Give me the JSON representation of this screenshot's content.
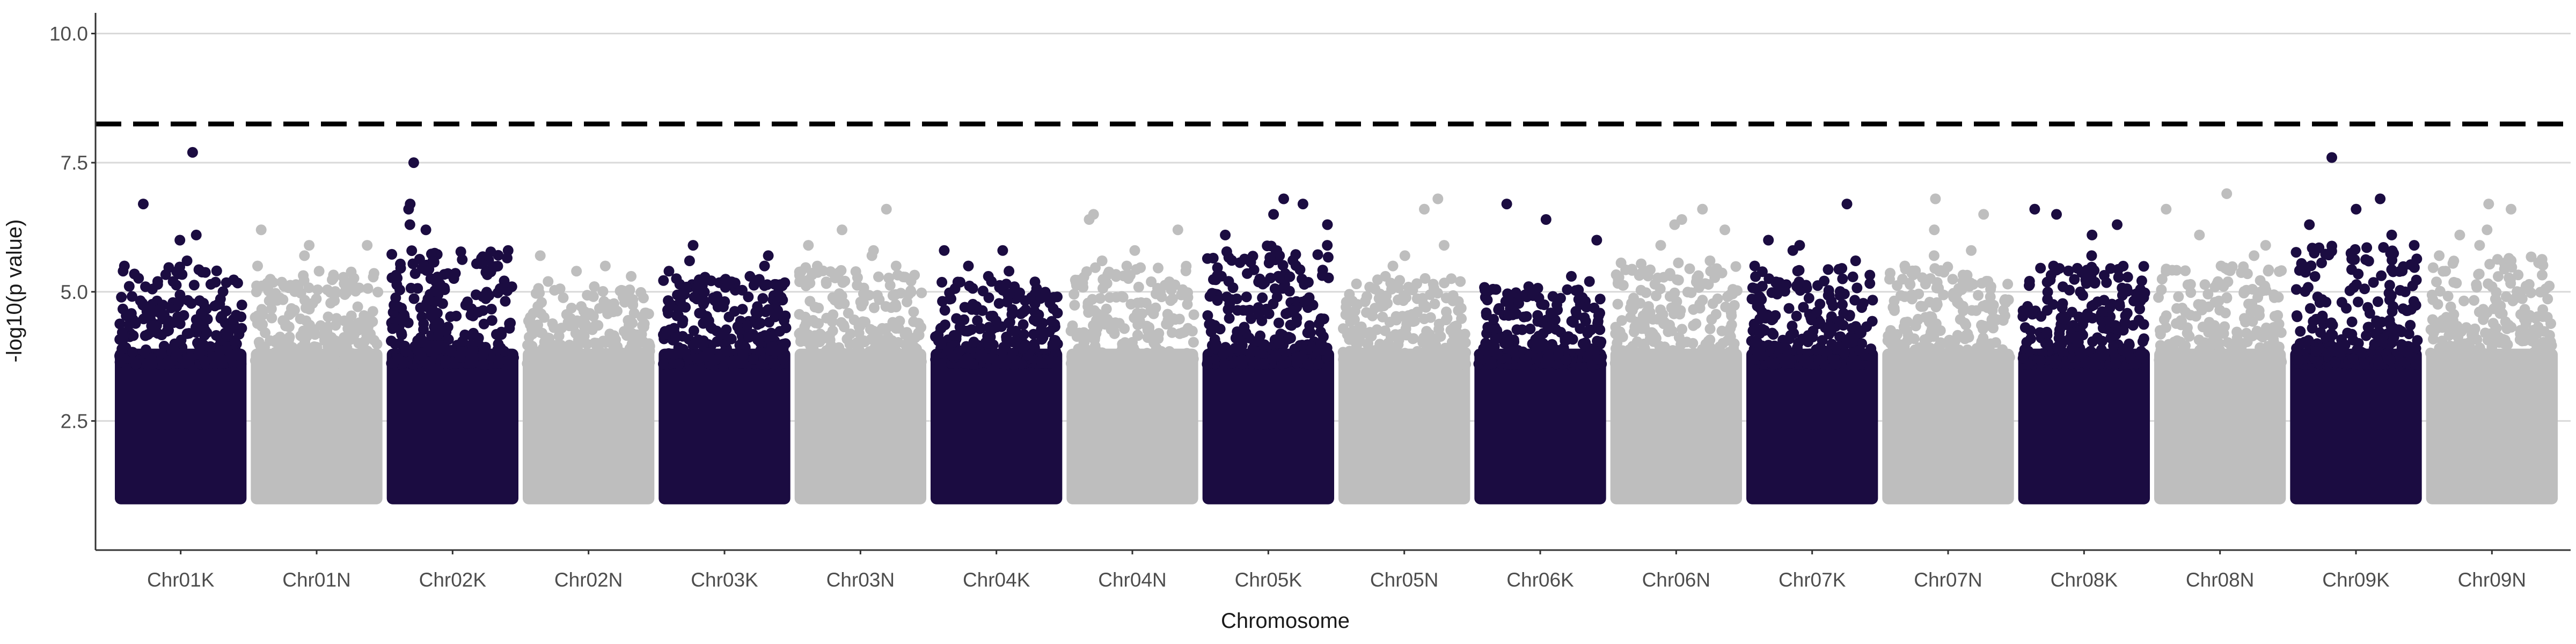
{
  "chart_data": {
    "type": "scatter",
    "title": "",
    "xlabel": "Chromosome",
    "ylabel": "-log10(p value)",
    "ylim": [
      0,
      10.4
    ],
    "y_ticks": [
      "2.5",
      "5.0",
      "7.5",
      "10.0"
    ],
    "grid": "horizontal major lines",
    "legend": "none",
    "threshold": 8.25,
    "colors": {
      "odd": "#1b0c41",
      "even": "#bebebe",
      "threshold": "#000000",
      "grid": "#d9d9d9"
    },
    "chromosomes": [
      {
        "label": "Chr01K",
        "max": [
          7.7,
          6.7,
          6.1,
          6.0,
          5.6,
          5.5
        ]
      },
      {
        "label": "Chr01N",
        "max": [
          6.2,
          5.9,
          5.9,
          5.7,
          5.5,
          5.4
        ]
      },
      {
        "label": "Chr02K",
        "max": [
          7.5,
          6.7,
          6.6,
          6.3,
          6.2,
          5.8
        ]
      },
      {
        "label": "Chr02N",
        "max": [
          5.7,
          5.5,
          5.4,
          5.3,
          5.2,
          5.1
        ]
      },
      {
        "label": "Chr03K",
        "max": [
          5.9,
          5.7,
          5.6,
          5.5,
          5.4,
          5.3
        ]
      },
      {
        "label": "Chr03N",
        "max": [
          6.6,
          6.2,
          5.9,
          5.8,
          5.7,
          5.5
        ]
      },
      {
        "label": "Chr04K",
        "max": [
          5.8,
          5.8,
          5.5,
          5.4,
          5.3,
          5.2
        ]
      },
      {
        "label": "Chr04N",
        "max": [
          6.5,
          6.4,
          6.2,
          5.8,
          5.6,
          5.5
        ]
      },
      {
        "label": "Chr05K",
        "max": [
          6.8,
          6.7,
          6.5,
          6.3,
          6.1,
          5.9
        ]
      },
      {
        "label": "Chr05N",
        "max": [
          6.8,
          6.6,
          5.9,
          5.7,
          5.5,
          5.3
        ]
      },
      {
        "label": "Chr06K",
        "max": [
          6.7,
          6.4,
          6.0,
          5.3,
          5.2,
          5.1
        ]
      },
      {
        "label": "Chr06N",
        "max": [
          6.6,
          6.4,
          6.3,
          6.2,
          5.9,
          5.6
        ]
      },
      {
        "label": "Chr07K",
        "max": [
          6.7,
          6.0,
          5.9,
          5.8,
          5.6,
          5.5
        ]
      },
      {
        "label": "Chr07N",
        "max": [
          6.8,
          6.5,
          6.2,
          5.8,
          5.7,
          5.5
        ]
      },
      {
        "label": "Chr08K",
        "max": [
          6.6,
          6.5,
          6.3,
          6.1,
          5.7,
          5.5
        ]
      },
      {
        "label": "Chr08N",
        "max": [
          6.9,
          6.6,
          6.1,
          5.9,
          5.7,
          5.5
        ]
      },
      {
        "label": "Chr09K",
        "max": [
          7.6,
          6.8,
          6.6,
          6.3,
          6.1,
          5.9
        ]
      },
      {
        "label": "Chr09N",
        "max": [
          6.7,
          6.6,
          6.2,
          6.1,
          5.9,
          5.7
        ]
      }
    ]
  }
}
